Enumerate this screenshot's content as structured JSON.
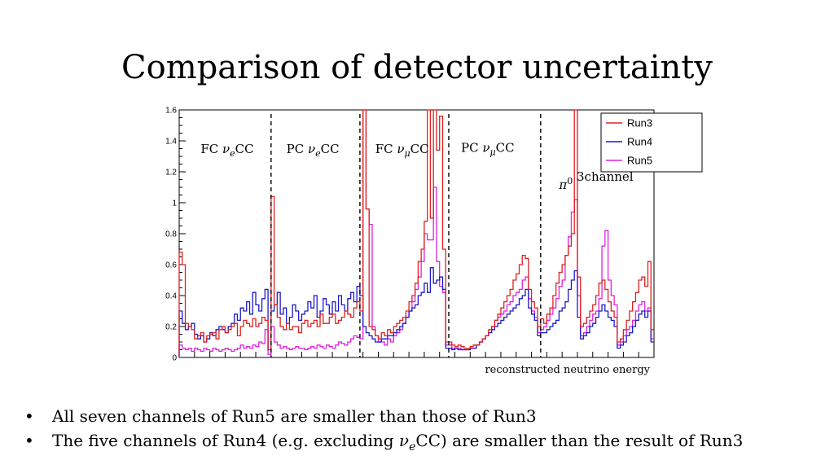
{
  "slide": {
    "title": "Comparison of detector uncertainty",
    "bullets": [
      {
        "bullet": "•",
        "parts": [
          "All seven channels of Run5 are smaller than those of Run3"
        ]
      },
      {
        "bullet": "•",
        "parts": [
          "The five channels of Run4 (e.g. excluding ",
          "ν",
          "e",
          "CC) are smaller than the result of Run3"
        ]
      }
    ]
  },
  "chart_data": {
    "type": "line",
    "style": "step-histogram",
    "title": "",
    "xlabel": "reconstructed neutrino energy",
    "ylabel": "",
    "ylim": [
      0,
      1.6
    ],
    "yticks": [
      "0",
      "0.2",
      "0.4",
      "0.6",
      "0.8",
      "1",
      "1.2",
      "1.4",
      "1.6"
    ],
    "xlim": [
      0,
      155
    ],
    "legend_position": "top-right",
    "channel_boundaries": [
      30,
      59,
      88,
      118
    ],
    "pi0_boundary": 118,
    "channels": [
      {
        "label": "FC νeCC",
        "main": "FC ",
        "greek": "ν",
        "sub": "e",
        "tail": "CC",
        "at_bin": 7,
        "y": 1.32
      },
      {
        "label": "PC νeCC",
        "main": "PC ",
        "greek": "ν",
        "sub": "e",
        "tail": "CC",
        "at_bin": 35,
        "y": 1.32
      },
      {
        "label": "FC νμCC",
        "main": "FC ",
        "greek": "ν",
        "sub": "μ",
        "tail": "CC",
        "at_bin": 64,
        "y": 1.32
      },
      {
        "label": "PC νμCC",
        "main": "PC ",
        "greek": "ν",
        "sub": "μ",
        "tail": "CC",
        "at_bin": 92,
        "y": 1.33
      },
      {
        "label": "π0 3channel",
        "main": "",
        "greek": "π",
        "sup": "0",
        "tail": "  3channel",
        "at_bin": 124,
        "y": 1.09
      }
    ],
    "series": [
      {
        "name": "Run3",
        "color": "#e02020",
        "values": [
          0.68,
          0.6,
          0.22,
          0.2,
          0.18,
          0.12,
          0.14,
          0.16,
          0.1,
          0.14,
          0.15,
          0.16,
          0.12,
          0.18,
          0.2,
          0.16,
          0.18,
          0.2,
          0.22,
          0.14,
          0.2,
          0.24,
          0.22,
          0.2,
          0.25,
          0.2,
          0.22,
          0.26,
          0.24,
          0.05,
          1.04,
          0.34,
          0.26,
          0.2,
          0.18,
          0.22,
          0.18,
          0.2,
          0.2,
          0.16,
          0.22,
          0.24,
          0.2,
          0.22,
          0.24,
          0.2,
          0.28,
          0.22,
          0.22,
          0.26,
          0.28,
          0.22,
          0.24,
          0.26,
          0.3,
          0.28,
          0.26,
          0.32,
          0.36,
          0.3,
          1.6,
          0.96,
          0.2,
          0.18,
          0.14,
          0.12,
          0.16,
          0.14,
          0.18,
          0.16,
          0.2,
          0.22,
          0.24,
          0.26,
          0.3,
          0.36,
          0.4,
          0.48,
          0.62,
          0.7,
          0.88,
          1.6,
          0.9,
          1.6,
          1.34,
          1.56,
          0.7,
          0.1,
          0.1,
          0.08,
          0.07,
          0.08,
          0.07,
          0.06,
          0.06,
          0.07,
          0.08,
          0.08,
          0.1,
          0.12,
          0.14,
          0.18,
          0.2,
          0.24,
          0.28,
          0.32,
          0.36,
          0.4,
          0.44,
          0.5,
          0.54,
          0.6,
          0.66,
          0.64,
          0.44,
          0.36,
          0.32,
          0.2,
          0.25,
          0.22,
          0.28,
          0.32,
          0.4,
          0.48,
          0.55,
          0.6,
          0.66,
          0.72,
          0.8,
          1.6,
          0.52,
          0.2,
          0.22,
          0.26,
          0.3,
          0.34,
          0.4,
          0.48,
          0.5,
          0.44,
          0.36,
          0.3,
          0.26,
          0.1,
          0.12,
          0.18,
          0.24,
          0.3,
          0.36,
          0.42,
          0.5,
          0.52,
          0.46,
          0.62,
          0.18
        ]
      },
      {
        "name": "Run4",
        "color": "#1a1acc",
        "values": [
          0.3,
          0.22,
          0.18,
          0.2,
          0.22,
          0.15,
          0.12,
          0.14,
          0.1,
          0.12,
          0.16,
          0.14,
          0.18,
          0.2,
          0.18,
          0.16,
          0.2,
          0.22,
          0.28,
          0.24,
          0.32,
          0.3,
          0.36,
          0.28,
          0.42,
          0.34,
          0.3,
          0.38,
          0.44,
          0.05,
          0.3,
          0.34,
          0.42,
          0.28,
          0.32,
          0.22,
          0.26,
          0.34,
          0.3,
          0.24,
          0.28,
          0.3,
          0.36,
          0.32,
          0.4,
          0.26,
          0.3,
          0.38,
          0.34,
          0.28,
          0.36,
          0.3,
          0.4,
          0.34,
          0.3,
          0.38,
          0.42,
          0.36,
          0.46,
          0.4,
          0.2,
          0.16,
          0.14,
          0.12,
          0.1,
          0.1,
          0.12,
          0.12,
          0.14,
          0.14,
          0.16,
          0.18,
          0.2,
          0.22,
          0.26,
          0.3,
          0.32,
          0.34,
          0.4,
          0.42,
          0.48,
          0.42,
          0.58,
          0.48,
          0.5,
          0.52,
          0.44,
          0.06,
          0.06,
          0.05,
          0.06,
          0.05,
          0.05,
          0.05,
          0.05,
          0.06,
          0.06,
          0.08,
          0.1,
          0.12,
          0.14,
          0.16,
          0.18,
          0.2,
          0.22,
          0.24,
          0.26,
          0.28,
          0.3,
          0.32,
          0.34,
          0.38,
          0.4,
          0.44,
          0.32,
          0.28,
          0.24,
          0.14,
          0.16,
          0.16,
          0.18,
          0.2,
          0.22,
          0.24,
          0.3,
          0.32,
          0.36,
          0.44,
          0.5,
          0.56,
          0.26,
          0.12,
          0.14,
          0.16,
          0.2,
          0.22,
          0.26,
          0.3,
          0.34,
          0.3,
          0.26,
          0.24,
          0.2,
          0.06,
          0.08,
          0.1,
          0.14,
          0.16,
          0.2,
          0.24,
          0.28,
          0.3,
          0.26,
          0.3,
          0.1
        ]
      },
      {
        "name": "Run5",
        "color": "#e020e0",
        "values": [
          0.08,
          0.06,
          0.05,
          0.06,
          0.04,
          0.06,
          0.05,
          0.04,
          0.06,
          0.05,
          0.04,
          0.06,
          0.05,
          0.04,
          0.05,
          0.06,
          0.05,
          0.04,
          0.05,
          0.06,
          0.08,
          0.06,
          0.07,
          0.06,
          0.08,
          0.07,
          0.1,
          0.09,
          0.18,
          0.02,
          0.2,
          0.1,
          0.08,
          0.06,
          0.07,
          0.06,
          0.05,
          0.06,
          0.07,
          0.06,
          0.06,
          0.05,
          0.06,
          0.07,
          0.06,
          0.08,
          0.07,
          0.06,
          0.08,
          0.07,
          0.06,
          0.08,
          0.1,
          0.09,
          0.08,
          0.1,
          0.12,
          0.14,
          0.13,
          0.12,
          1.6,
          0.96,
          0.86,
          0.2,
          0.14,
          0.1,
          0.1,
          0.08,
          0.12,
          0.1,
          0.14,
          0.16,
          0.18,
          0.22,
          0.26,
          0.3,
          0.36,
          0.44,
          0.52,
          0.62,
          0.8,
          0.76,
          0.76,
          1.1,
          0.62,
          0.46,
          0.42,
          0.08,
          0.08,
          0.06,
          0.06,
          0.06,
          0.05,
          0.05,
          0.05,
          0.06,
          0.06,
          0.08,
          0.1,
          0.12,
          0.14,
          0.16,
          0.2,
          0.24,
          0.26,
          0.28,
          0.3,
          0.34,
          0.36,
          0.4,
          0.42,
          0.44,
          0.5,
          0.52,
          0.38,
          0.3,
          0.26,
          0.16,
          0.18,
          0.2,
          0.24,
          0.28,
          0.32,
          0.38,
          0.46,
          0.5,
          0.66,
          0.78,
          0.94,
          1.02,
          0.4,
          0.14,
          0.16,
          0.2,
          0.24,
          0.28,
          0.3,
          0.38,
          0.72,
          0.82,
          0.5,
          0.4,
          0.34,
          0.08,
          0.1,
          0.14,
          0.18,
          0.2,
          0.24,
          0.3,
          0.34,
          0.36,
          0.3,
          0.32,
          0.12
        ]
      }
    ]
  }
}
